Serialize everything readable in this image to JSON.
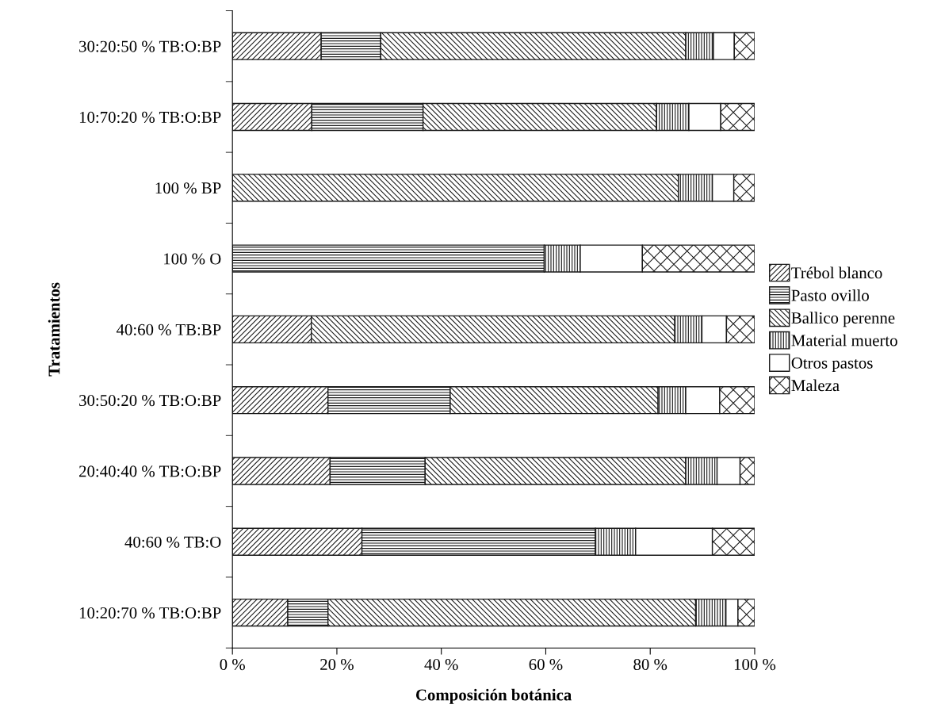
{
  "chart_data": {
    "type": "bar",
    "orientation": "horizontal",
    "stacked": true,
    "xlabel": "Composición botánica",
    "ylabel": "Tratamientos",
    "categories": [
      "30:20:50 % TB:O:BP",
      "10:70:20 % TB:O:BP",
      "100 % BP",
      "100 % O",
      "40:60 % TB:BP",
      "30:50:20 % TB:O:BP",
      "20:40:40 % TB:O:BP",
      "40:60 % TB:O",
      "10:20:70 % TB:O:BP"
    ],
    "series": [
      {
        "name": "Trébol blanco",
        "color": "#1a1a1a",
        "values": [
          17.0,
          15.2,
          null,
          null,
          15.1,
          18.3,
          18.7,
          24.8,
          10.6
        ]
      },
      {
        "name": "Pasto ovillo",
        "color": "#1a1a1a",
        "values": [
          11.4,
          21.3,
          null,
          59.7,
          null,
          23.4,
          18.2,
          44.7,
          7.7
        ]
      },
      {
        "name": "Ballico perenne",
        "color": "#1a1a1a",
        "values": [
          58.4,
          44.7,
          85.4,
          null,
          69.6,
          39.8,
          49.9,
          null,
          70.4
        ]
      },
      {
        "name": "Material muerto",
        "color": "#1a1a1a",
        "values": [
          5.3,
          6.2,
          6.5,
          6.9,
          5.2,
          5.3,
          6.0,
          7.7,
          5.8
        ]
      },
      {
        "name": "Otros pastos",
        "color": "#ffffff",
        "values": [
          4.0,
          6.1,
          4.1,
          11.9,
          4.7,
          6.5,
          4.4,
          14.7,
          2.3
        ]
      },
      {
        "name": "Maleza",
        "color": "#1a1a1a",
        "values": [
          3.9,
          6.5,
          4.0,
          21.5,
          5.4,
          6.7,
          2.8,
          8.1,
          3.2
        ]
      }
    ],
    "xlim": [
      0,
      100
    ],
    "xticks": [
      {
        "value": 0,
        "label": "0 %"
      },
      {
        "value": 20,
        "label": "20 %"
      },
      {
        "value": 40,
        "label": "40 %"
      },
      {
        "value": 60,
        "label": "60 %"
      },
      {
        "value": 80,
        "label": "80 %"
      },
      {
        "value": 100,
        "label": "100 %"
      }
    ],
    "grid": false,
    "legend": "right"
  }
}
